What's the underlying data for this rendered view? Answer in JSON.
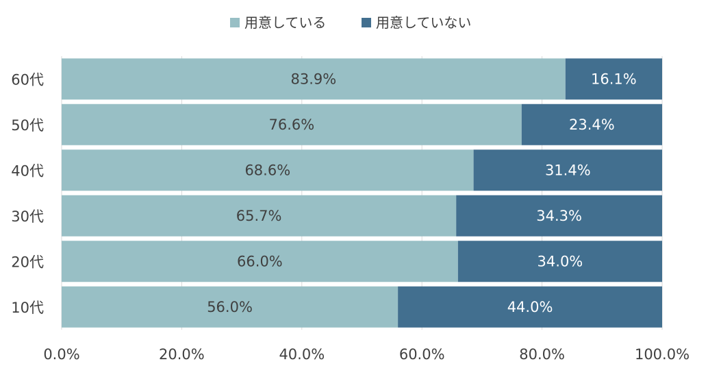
{
  "chart_data": {
    "type": "bar",
    "orientation": "horizontal",
    "stacked": true,
    "categories": [
      "60代",
      "50代",
      "40代",
      "30代",
      "20代",
      "10代"
    ],
    "series": [
      {
        "name": "用意している",
        "values": [
          83.9,
          76.6,
          68.6,
          65.7,
          66.0,
          56.0
        ],
        "labels": [
          "83.9%",
          "76.6%",
          "68.6%",
          "65.7%",
          "66.0%",
          "56.0%"
        ],
        "color": "#98bfc5",
        "label_color": "#404040"
      },
      {
        "name": "用意していない",
        "values": [
          16.1,
          23.4,
          31.4,
          34.3,
          34.0,
          44.0
        ],
        "labels": [
          "16.1%",
          "23.4%",
          "31.4%",
          "34.3%",
          "34.0%",
          "44.0%"
        ],
        "color": "#426f8f",
        "label_color": "#ffffff"
      }
    ],
    "xlim": [
      0,
      100
    ],
    "x_ticks": [
      0,
      20,
      40,
      60,
      80,
      100
    ],
    "x_tick_labels": [
      "0.0%",
      "20.0%",
      "40.0%",
      "60.0%",
      "80.0%",
      "100.0%"
    ],
    "grid": "vertical",
    "legend_position": "top-center",
    "title": "",
    "xlabel": "",
    "ylabel": ""
  }
}
